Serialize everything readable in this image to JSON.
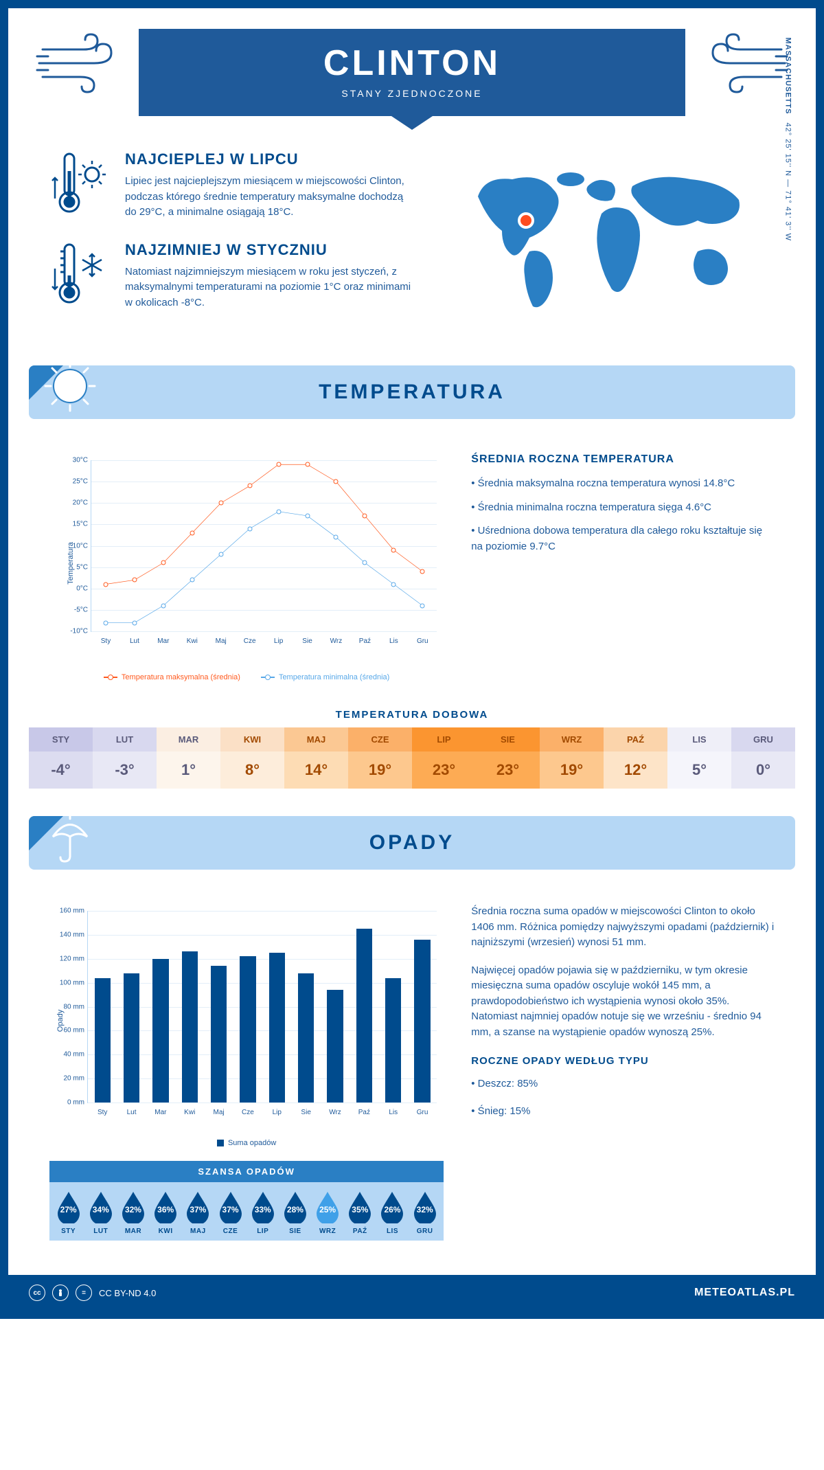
{
  "header": {
    "title": "CLINTON",
    "subtitle": "STANY ZJEDNOCZONE"
  },
  "location": {
    "state": "MASSACHUSETTS",
    "coords": "42° 25' 15'' N — 71° 41' 3'' W",
    "marker_color": "#ff4d1f",
    "map_color": "#2a7fc4"
  },
  "summary": {
    "hot": {
      "title": "NAJCIEPLEJ W LIPCU",
      "text": "Lipiec jest najcieplejszym miesiącem w miejscowości Clinton, podczas którego średnie temperatury maksymalne dochodzą do 29°C, a minimalne osiągają 18°C."
    },
    "cold": {
      "title": "NAJZIMNIEJ W STYCZNIU",
      "text": "Natomiast najzimniejszym miesiącem w roku jest styczeń, z maksymalnymi temperaturami na poziomie 1°C oraz minimami w okolicach -8°C."
    }
  },
  "colors": {
    "primary": "#004b8d",
    "secondary": "#1f5a9a",
    "light_blue": "#b5d7f5",
    "grid": "#e3eef8",
    "max_line": "#ff5a1f",
    "min_line": "#58a8e8",
    "drop_dark": "#004b8d",
    "drop_light": "#3fa0e8"
  },
  "temperature": {
    "section_title": "TEMPERATURA",
    "chart": {
      "type": "line",
      "months": [
        "Sty",
        "Lut",
        "Mar",
        "Kwi",
        "Maj",
        "Cze",
        "Lip",
        "Sie",
        "Wrz",
        "Paź",
        "Lis",
        "Gru"
      ],
      "series": {
        "max": {
          "label": "Temperatura maksymalna (średnia)",
          "color": "#ff5a1f",
          "values": [
            1,
            2,
            6,
            13,
            20,
            24,
            29,
            29,
            25,
            17,
            9,
            4
          ]
        },
        "min": {
          "label": "Temperatura minimalna (średnia)",
          "color": "#58a8e8",
          "values": [
            -8,
            -8,
            -4,
            2,
            8,
            14,
            18,
            17,
            12,
            6,
            1,
            -4
          ]
        }
      },
      "ylim": [
        -10,
        30
      ],
      "ytick_step": 5,
      "y_axis_label": "Temperatura",
      "y_unit": "°C",
      "grid_color": "#e3eef8",
      "background": "#ffffff",
      "line_width": 2,
      "marker": "circle",
      "marker_size": 5,
      "label_fontsize": 10
    },
    "info": {
      "title": "ŚREDNIA ROCZNA TEMPERATURA",
      "bullets": [
        "• Średnia maksymalna roczna temperatura wynosi 14.8°C",
        "• Średnia minimalna roczna temperatura sięga 4.6°C",
        "• Uśredniona dobowa temperatura dla całego roku kształtuje się na poziomie 9.7°C"
      ]
    },
    "daily": {
      "title": "TEMPERATURA DOBOWA",
      "months": [
        "STY",
        "LUT",
        "MAR",
        "KWI",
        "MAJ",
        "CZE",
        "LIP",
        "SIE",
        "WRZ",
        "PAŹ",
        "LIS",
        "GRU"
      ],
      "values": [
        "-4°",
        "-3°",
        "1°",
        "8°",
        "14°",
        "19°",
        "23°",
        "23°",
        "19°",
        "12°",
        "5°",
        "0°"
      ],
      "header_colors": [
        "#c8c8e8",
        "#d8d8ef",
        "#fbeee2",
        "#fbe0c6",
        "#fbc893",
        "#fbb069",
        "#fb9530",
        "#fb9530",
        "#fbb069",
        "#fbd4ab",
        "#efeff8",
        "#d8d8ef"
      ],
      "value_colors": [
        "#dcdcf0",
        "#e8e8f5",
        "#fdf5ec",
        "#fdeddb",
        "#fddcb4",
        "#fdc88e",
        "#fdab54",
        "#fdab54",
        "#fdc88e",
        "#fde4c8",
        "#f5f5fb",
        "#e8e8f5"
      ],
      "text_color": "#5a5a7a",
      "hot_text_color": "#a24a00"
    }
  },
  "precipitation": {
    "section_title": "OPADY",
    "chart": {
      "type": "bar",
      "months": [
        "Sty",
        "Lut",
        "Mar",
        "Kwi",
        "Maj",
        "Cze",
        "Lip",
        "Sie",
        "Wrz",
        "Paź",
        "Lis",
        "Gru"
      ],
      "values": [
        104,
        108,
        120,
        126,
        114,
        122,
        125,
        108,
        94,
        145,
        104,
        136
      ],
      "bar_color": "#004b8d",
      "ylim": [
        0,
        160
      ],
      "ytick_step": 20,
      "y_unit": " mm",
      "y_axis_label": "Opady",
      "bar_width": 0.55,
      "grid_color": "#e3eef8",
      "legend_label": "Suma opadów",
      "label_fontsize": 10
    },
    "text1": "Średnia roczna suma opadów w miejscowości Clinton to około 1406 mm. Różnica pomiędzy najwyższymi opadami (październik) i najniższymi (wrzesień) wynosi 51 mm.",
    "text2": "Najwięcej opadów pojawia się w październiku, w tym okresie miesięczna suma opadów oscyluje wokół 145 mm, a prawdopodobieństwo ich wystąpienia wynosi około 35%. Natomiast najmniej opadów notuje się we wrześniu - średnio 94 mm, a szanse na wystąpienie opadów wynoszą 25%.",
    "chance": {
      "title": "SZANSA OPADÓW",
      "months": [
        "STY",
        "LUT",
        "MAR",
        "KWI",
        "MAJ",
        "CZE",
        "LIP",
        "SIE",
        "WRZ",
        "PAŹ",
        "LIS",
        "GRU"
      ],
      "values": [
        "27%",
        "34%",
        "32%",
        "36%",
        "37%",
        "37%",
        "33%",
        "28%",
        "25%",
        "35%",
        "26%",
        "32%"
      ],
      "min_index": 8
    },
    "by_type": {
      "title": "ROCZNE OPADY WEDŁUG TYPU",
      "lines": [
        "• Deszcz: 85%",
        "• Śnieg: 15%"
      ]
    }
  },
  "footer": {
    "license": "CC BY-ND 4.0",
    "site": "METEOATLAS.PL"
  }
}
